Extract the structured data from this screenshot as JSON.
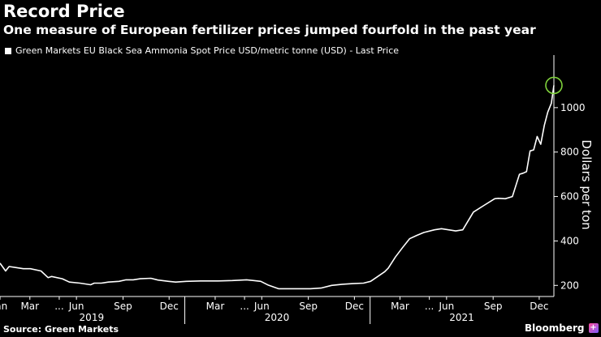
{
  "title": "Record Price",
  "subtitle": "One measure of European fertilizer prices jumped fourfold in the past year",
  "legend_label": "Green Markets EU Black Sea Ammonia Spot Price USD/metric tonne (USD) - Last Price",
  "source": "Source: Green Markets",
  "brand": "Bloomberg",
  "colors": {
    "background": "#000000",
    "line": "#ffffff",
    "highlight": "#7fd13b"
  },
  "chart_data": {
    "type": "line",
    "ylabel": "Dollars per ton",
    "ylim": [
      150,
      1200
    ],
    "yticks": [
      200,
      400,
      600,
      800,
      1000
    ],
    "xlim": [
      "2019-01-01",
      "2021-12-30"
    ],
    "month_ticks": [
      {
        "label": "Jan",
        "date": "2019-01-01"
      },
      {
        "label": "Mar",
        "date": "2019-03-01"
      },
      {
        "label": "...",
        "date": "2019-04-28"
      },
      {
        "label": "Jun",
        "date": "2019-06-01"
      },
      {
        "label": "Sep",
        "date": "2019-09-01"
      },
      {
        "label": "Dec",
        "date": "2019-12-01"
      },
      {
        "label": "Mar",
        "date": "2020-03-01"
      },
      {
        "label": "...",
        "date": "2020-04-28"
      },
      {
        "label": "Jun",
        "date": "2020-06-01"
      },
      {
        "label": "Sep",
        "date": "2020-09-01"
      },
      {
        "label": "Dec",
        "date": "2020-12-01"
      },
      {
        "label": "Mar",
        "date": "2021-03-01"
      },
      {
        "label": "...",
        "date": "2021-04-28"
      },
      {
        "label": "Jun",
        "date": "2021-06-01"
      },
      {
        "label": "Sep",
        "date": "2021-09-01"
      },
      {
        "label": "Dec",
        "date": "2021-12-01"
      }
    ],
    "year_labels": [
      {
        "label": "2019",
        "date": "2019-07-01"
      },
      {
        "label": "2020",
        "date": "2020-07-01"
      },
      {
        "label": "2021",
        "date": "2021-07-01"
      }
    ],
    "year_dividers": [
      "2020-01-01",
      "2021-01-01"
    ],
    "series": [
      {
        "x": [
          "2019-01-01",
          "2019-01-12",
          "2019-01-19",
          "2019-02-02",
          "2019-02-16",
          "2019-03-02",
          "2019-03-23",
          "2019-04-06",
          "2019-04-13",
          "2019-05-04",
          "2019-05-18",
          "2019-06-08",
          "2019-06-29",
          "2019-07-06",
          "2019-07-20",
          "2019-08-03",
          "2019-08-24",
          "2019-09-07",
          "2019-09-21",
          "2019-10-05",
          "2019-10-26",
          "2019-11-09",
          "2019-11-30",
          "2019-12-14",
          "2020-01-04",
          "2020-02-01",
          "2020-03-07",
          "2020-04-04",
          "2020-05-02",
          "2020-05-16",
          "2020-05-30",
          "2020-06-13",
          "2020-07-04",
          "2020-08-01",
          "2020-09-05",
          "2020-09-26",
          "2020-10-17",
          "2020-11-07",
          "2020-11-28",
          "2020-12-19",
          "2021-01-02",
          "2021-01-16",
          "2021-01-30",
          "2021-02-06",
          "2021-02-20",
          "2021-03-06",
          "2021-03-20",
          "2021-04-03",
          "2021-04-17",
          "2021-05-08",
          "2021-05-22",
          "2021-06-05",
          "2021-06-19",
          "2021-07-03",
          "2021-07-24",
          "2021-08-14",
          "2021-08-28",
          "2021-09-04",
          "2021-09-11",
          "2021-09-25",
          "2021-10-09",
          "2021-10-23",
          "2021-10-30",
          "2021-11-06",
          "2021-11-13",
          "2021-11-20",
          "2021-11-27",
          "2021-12-04",
          "2021-12-11",
          "2021-12-18",
          "2021-12-25",
          "2021-12-30"
        ],
        "values": [
          300,
          265,
          285,
          280,
          275,
          275,
          265,
          235,
          240,
          230,
          215,
          210,
          203,
          210,
          210,
          215,
          218,
          225,
          225,
          230,
          232,
          224,
          218,
          215,
          218,
          220,
          220,
          222,
          225,
          222,
          218,
          202,
          185,
          185,
          185,
          188,
          200,
          205,
          208,
          210,
          218,
          240,
          262,
          278,
          328,
          370,
          410,
          425,
          438,
          450,
          455,
          450,
          445,
          450,
          530,
          560,
          580,
          590,
          592,
          590,
          600,
          700,
          705,
          712,
          805,
          810,
          870,
          835,
          920,
          980,
          1020,
          1100
        ]
      }
    ],
    "highlight": {
      "x": "2021-12-30",
      "y": 1100
    }
  }
}
